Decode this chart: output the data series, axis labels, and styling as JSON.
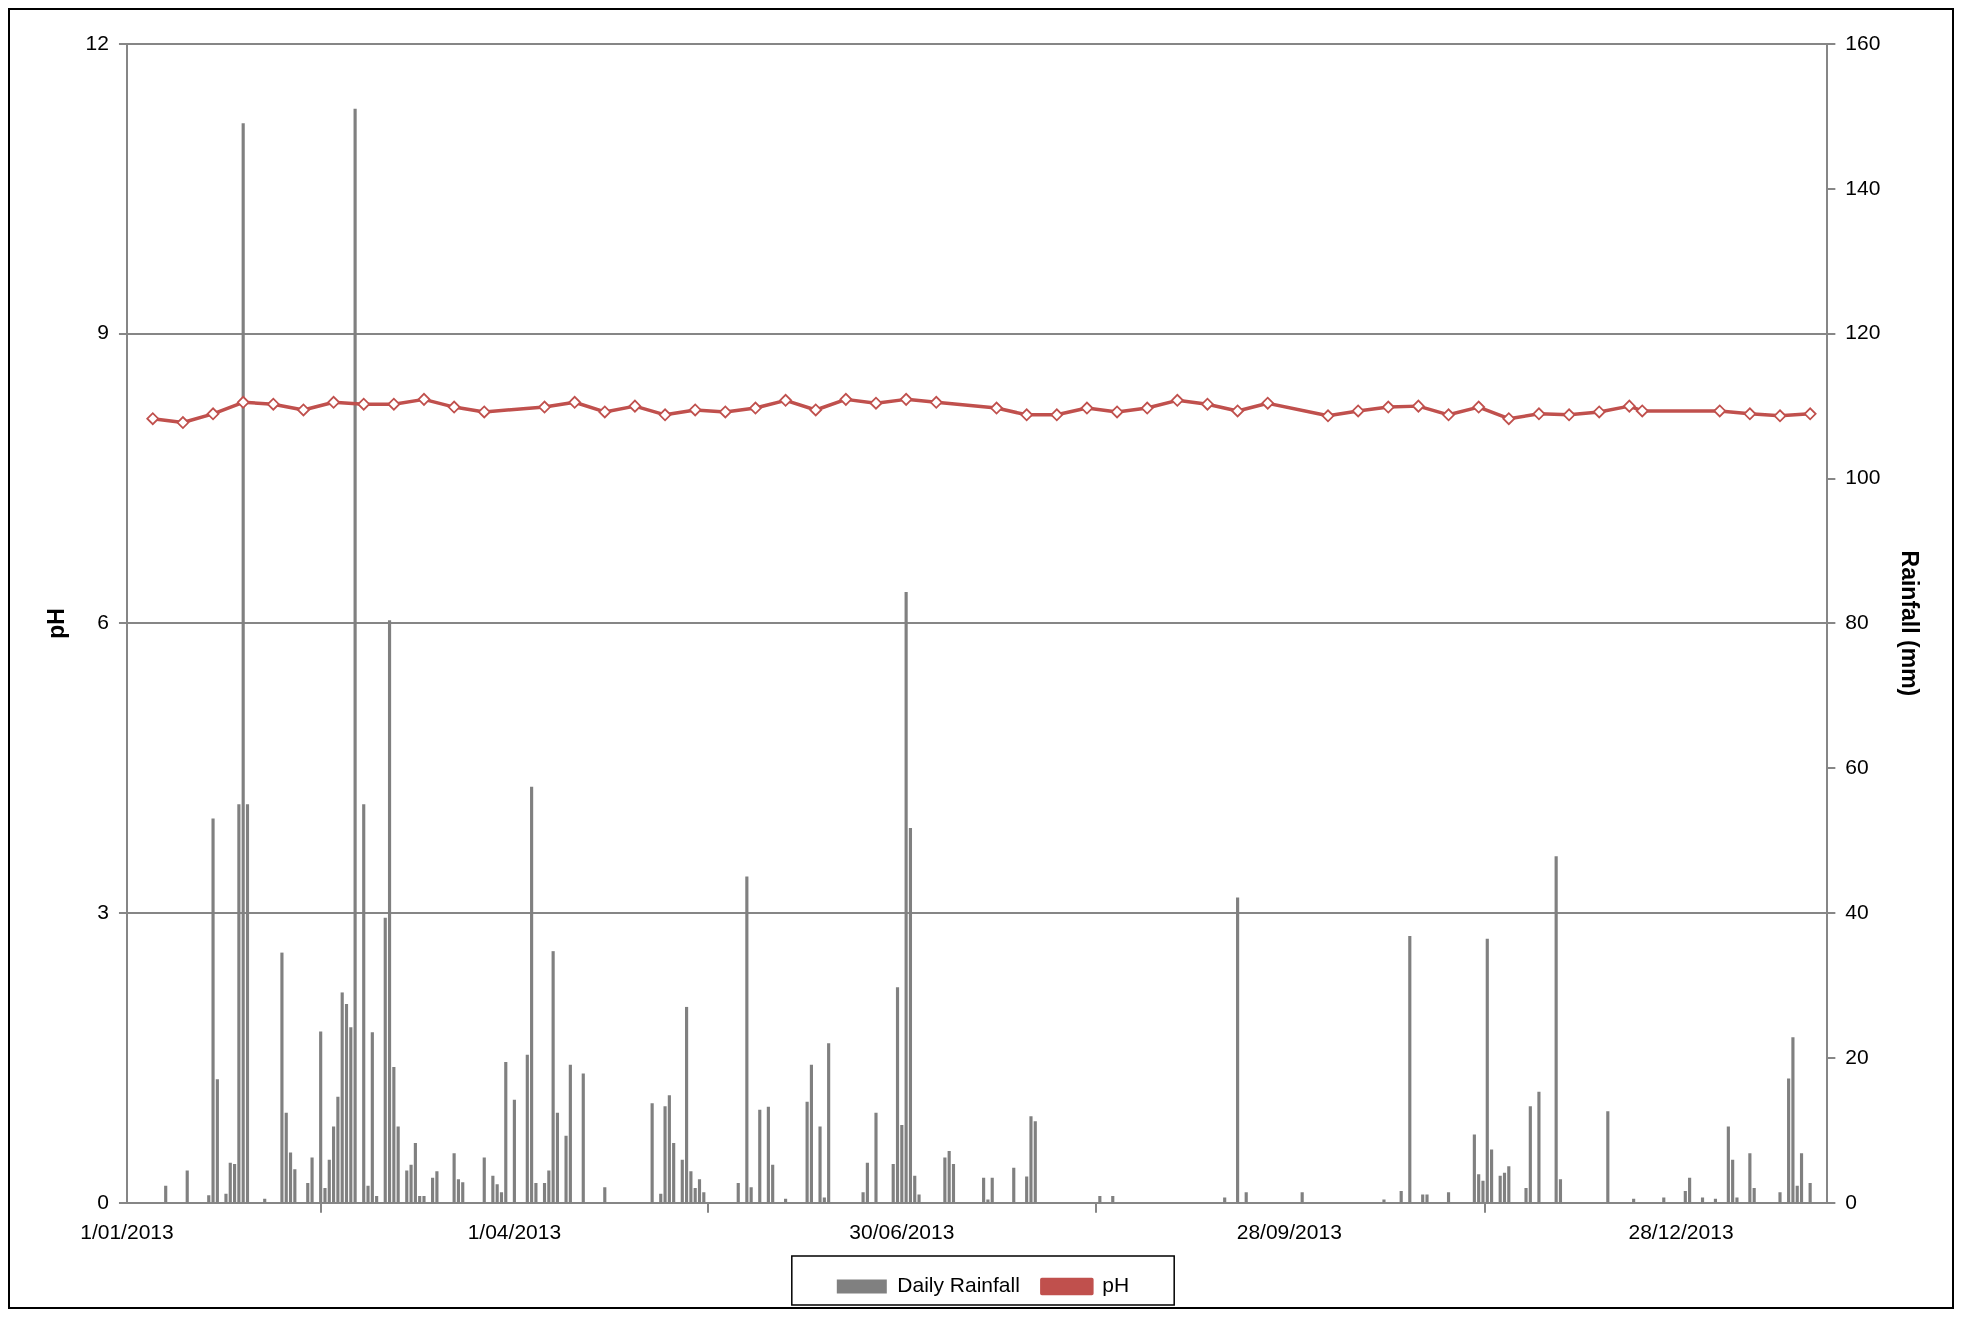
{
  "chart_data": {
    "type": "bar",
    "xlabel": null,
    "ylabel": "pH",
    "y2label": "Rainfall (mm)",
    "xlim": [
      "2013-01-01",
      "2014-01-31"
    ],
    "xticks": [
      {
        "value": "2013-01-01",
        "label": "1/01/2013"
      },
      {
        "value": "2013-04-01",
        "label": "1/04/2013"
      },
      {
        "value": "2013-06-30",
        "label": "30/06/2013"
      },
      {
        "value": "2013-09-28",
        "label": "28/09/2013"
      },
      {
        "value": "2013-12-28",
        "label": "28/12/2013"
      }
    ],
    "ylim": [
      0,
      12
    ],
    "yticks": [
      0,
      3,
      6,
      9,
      12
    ],
    "y2lim": [
      0,
      160
    ],
    "y2ticks": [
      0,
      20,
      40,
      60,
      80,
      100,
      120,
      140,
      160
    ],
    "grid": "y",
    "legend": "bottom",
    "series": [
      {
        "name": "Daily Rainfall",
        "axis": "y2",
        "color": "#808080",
        "x": [
          "2013-01-10",
          "2013-01-15",
          "2013-01-20",
          "2013-01-21",
          "2013-01-22",
          "2013-01-24",
          "2013-01-25",
          "2013-01-26",
          "2013-01-27",
          "2013-01-28",
          "2013-01-29",
          "2013-02-02",
          "2013-02-06",
          "2013-02-07",
          "2013-02-08",
          "2013-02-09",
          "2013-02-12",
          "2013-02-13",
          "2013-02-15",
          "2013-02-16",
          "2013-02-17",
          "2013-02-18",
          "2013-02-19",
          "2013-02-20",
          "2013-02-21",
          "2013-02-22",
          "2013-02-23",
          "2013-02-25",
          "2013-02-26",
          "2013-02-27",
          "2013-02-28",
          "2013-03-02",
          "2013-03-03",
          "2013-03-04",
          "2013-03-05",
          "2013-03-07",
          "2013-03-08",
          "2013-03-09",
          "2013-03-10",
          "2013-03-11",
          "2013-03-13",
          "2013-03-14",
          "2013-03-18",
          "2013-03-19",
          "2013-03-20",
          "2013-03-25",
          "2013-03-27",
          "2013-03-28",
          "2013-03-29",
          "2013-03-30",
          "2013-04-01",
          "2013-04-04",
          "2013-04-05",
          "2013-04-06",
          "2013-04-08",
          "2013-04-09",
          "2013-04-10",
          "2013-04-11",
          "2013-04-13",
          "2013-04-14",
          "2013-04-17",
          "2013-04-22",
          "2013-05-03",
          "2013-05-05",
          "2013-05-06",
          "2013-05-07",
          "2013-05-08",
          "2013-05-10",
          "2013-05-11",
          "2013-05-12",
          "2013-05-13",
          "2013-05-14",
          "2013-05-15",
          "2013-05-23",
          "2013-05-25",
          "2013-05-26",
          "2013-05-28",
          "2013-05-30",
          "2013-05-31",
          "2013-06-03",
          "2013-06-08",
          "2013-06-09",
          "2013-06-11",
          "2013-06-12",
          "2013-06-13",
          "2013-06-21",
          "2013-06-22",
          "2013-06-24",
          "2013-06-28",
          "2013-06-29",
          "2013-06-30",
          "2013-07-01",
          "2013-07-02",
          "2013-07-03",
          "2013-07-04",
          "2013-07-10",
          "2013-07-11",
          "2013-07-12",
          "2013-07-19",
          "2013-07-20",
          "2013-07-21",
          "2013-07-26",
          "2013-07-29",
          "2013-07-30",
          "2013-07-31",
          "2013-08-15",
          "2013-08-18",
          "2013-09-13",
          "2013-09-16",
          "2013-09-18",
          "2013-10-01",
          "2013-10-20",
          "2013-10-24",
          "2013-10-26",
          "2013-10-29",
          "2013-10-30",
          "2013-11-04",
          "2013-11-10",
          "2013-11-11",
          "2013-11-12",
          "2013-11-13",
          "2013-11-14",
          "2013-11-16",
          "2013-11-17",
          "2013-11-18",
          "2013-11-22",
          "2013-11-23",
          "2013-11-25",
          "2013-11-29",
          "2013-11-30",
          "2013-12-11",
          "2013-12-17",
          "2013-12-24",
          "2013-12-29",
          "2013-12-30",
          "2014-01-02",
          "2014-01-05",
          "2014-01-08",
          "2014-01-09",
          "2014-01-10",
          "2014-01-13",
          "2014-01-14",
          "2014-01-20",
          "2014-01-22",
          "2014-01-23",
          "2014-01-24",
          "2014-01-25",
          "2014-01-27"
        ],
        "values": [
          2.3,
          4.4,
          1,
          53,
          17,
          1.2,
          5.5,
          5.3,
          55,
          149,
          55,
          0.5,
          34.5,
          12.4,
          6.9,
          4.6,
          2.7,
          6.2,
          23.6,
          2,
          5.9,
          10.5,
          14.6,
          29,
          27.4,
          24.2,
          151,
          55,
          2.3,
          23.5,
          0.9,
          39.3,
          80.4,
          18.7,
          10.5,
          4.4,
          5.2,
          8.2,
          0.9,
          0.9,
          3.4,
          4.3,
          6.8,
          3.2,
          2.8,
          6.2,
          3.7,
          2.5,
          1.4,
          19.4,
          14.2,
          20.4,
          57.4,
          2.7,
          2.7,
          4.4,
          34.7,
          12.4,
          9.2,
          19,
          17.8,
          2.1,
          13.7,
          1.2,
          13.3,
          14.8,
          8.2,
          5.9,
          27,
          4.3,
          2,
          3.2,
          1.4,
          2.7,
          45,
          2.1,
          12.8,
          13.2,
          5.2,
          0.5,
          13.9,
          19,
          10.5,
          0.7,
          22,
          1.4,
          5.5,
          12.4,
          5.3,
          29.7,
          10.7,
          84.3,
          51.7,
          3.7,
          1.1,
          6.2,
          7.1,
          5.3,
          3.4,
          0.4,
          3.4,
          4.8,
          3.6,
          11.9,
          11.2,
          0.9,
          0.9,
          0.7,
          42.1,
          1.4,
          1.4,
          0.4,
          1.6,
          36.8,
          1.1,
          1.1,
          1.4,
          9.4,
          3.9,
          3,
          36.4,
          7.3,
          3.7,
          4.1,
          5,
          2,
          13.3,
          15.3,
          47.8,
          3.2,
          12.6,
          0.5,
          0.7,
          1.6,
          3.4,
          0.7,
          0.5,
          10.5,
          5.9,
          0.7,
          6.8,
          2,
          1.4,
          17.1,
          22.8,
          2.3,
          6.8,
          2.7
        ]
      },
      {
        "name": "pH",
        "type": "line",
        "axis": "y",
        "color": "#c0504d",
        "marker": "diamond",
        "line_style": "solid",
        "x": [
          "2013-01-07",
          "2013-01-14",
          "2013-01-21",
          "2013-01-28",
          "2013-02-04",
          "2013-02-11",
          "2013-02-18",
          "2013-02-25",
          "2013-03-04",
          "2013-03-11",
          "2013-03-18",
          "2013-03-25",
          "2013-04-08",
          "2013-04-15",
          "2013-04-22",
          "2013-04-29",
          "2013-05-06",
          "2013-05-13",
          "2013-05-20",
          "2013-05-27",
          "2013-06-03",
          "2013-06-10",
          "2013-06-17",
          "2013-06-24",
          "2013-07-01",
          "2013-07-08",
          "2013-07-22",
          "2013-07-29",
          "2013-08-05",
          "2013-08-12",
          "2013-08-19",
          "2013-08-26",
          "2013-09-02",
          "2013-09-09",
          "2013-09-16",
          "2013-09-23",
          "2013-10-07",
          "2013-10-14",
          "2013-10-21",
          "2013-10-28",
          "2013-11-04",
          "2013-11-11",
          "2013-11-18",
          "2013-11-25",
          "2013-12-02",
          "2013-12-09",
          "2013-12-16",
          "2013-12-19",
          "2014-01-06",
          "2014-01-13",
          "2014-01-20",
          "2014-01-27"
        ],
        "values": [
          8.12,
          8.08,
          8.17,
          8.29,
          8.27,
          8.21,
          8.29,
          8.27,
          8.27,
          8.32,
          8.24,
          8.19,
          8.24,
          8.29,
          8.19,
          8.25,
          8.16,
          8.21,
          8.19,
          8.23,
          8.31,
          8.21,
          8.32,
          8.28,
          8.32,
          8.29,
          8.23,
          8.16,
          8.16,
          8.23,
          8.19,
          8.23,
          8.31,
          8.27,
          8.2,
          8.28,
          8.15,
          8.2,
          8.24,
          8.25,
          8.16,
          8.24,
          8.12,
          8.17,
          8.16,
          8.19,
          8.25,
          8.2,
          8.2,
          8.17,
          8.15,
          8.17
        ]
      }
    ]
  }
}
